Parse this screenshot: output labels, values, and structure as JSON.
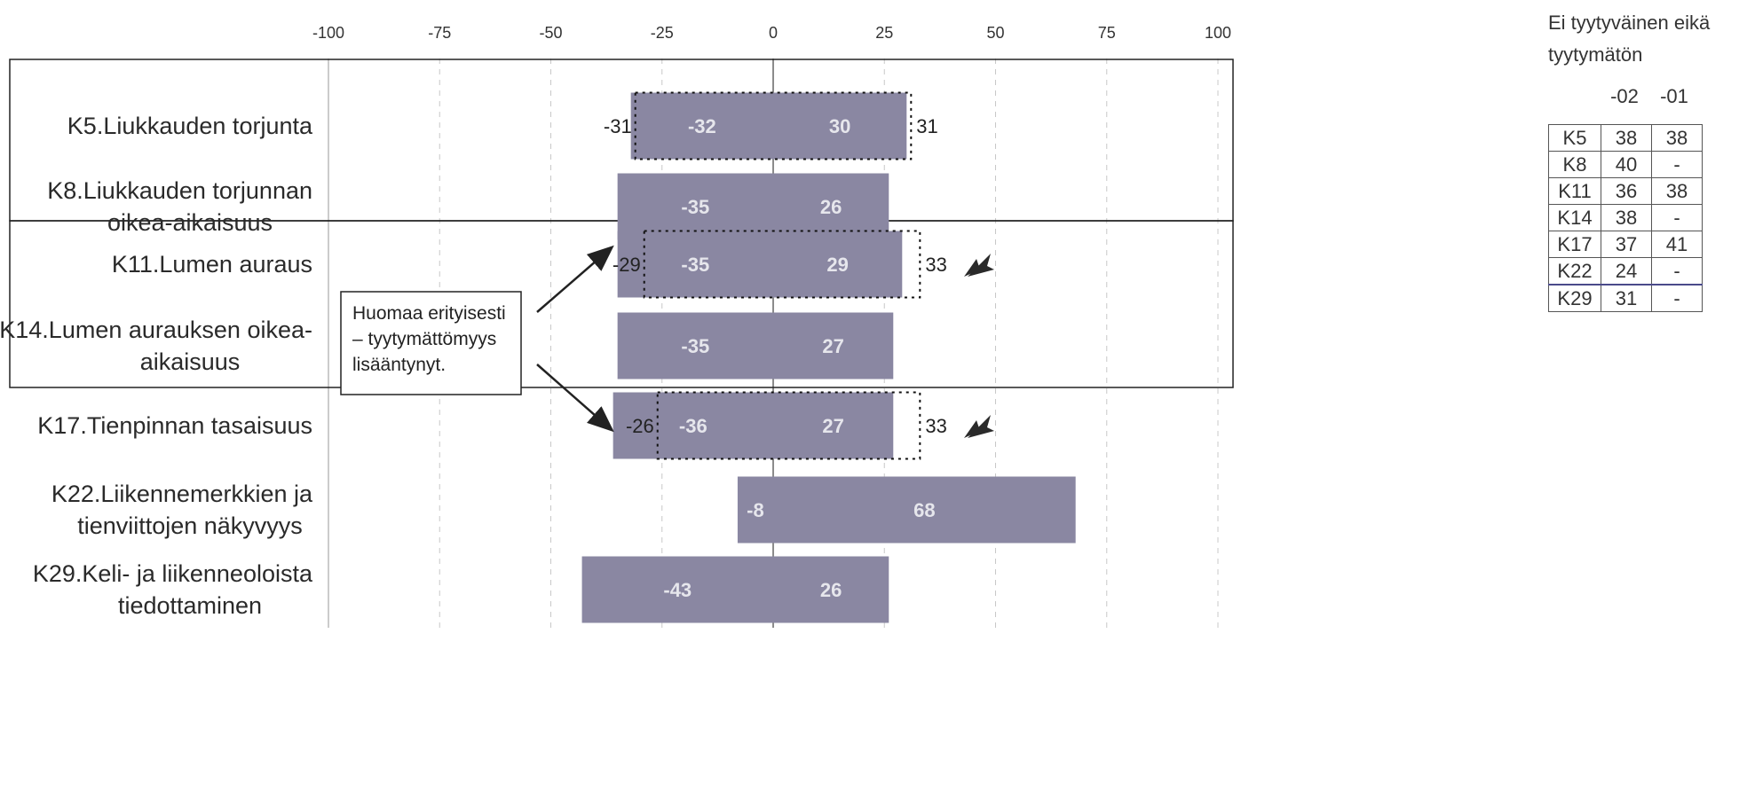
{
  "chart_data": {
    "type": "bar",
    "orientation": "horizontal-diverging",
    "xlim": [
      -100,
      100
    ],
    "ticks": [
      -100,
      -75,
      -50,
      -25,
      0,
      25,
      50,
      75,
      100
    ],
    "legend": "none",
    "grid": "vertical dashed",
    "categories": [
      {
        "id": "K5",
        "label_lines": [
          "K5.Liukkauden torjunta"
        ]
      },
      {
        "id": "K8",
        "label_lines": [
          "K8.Liukkauden torjunnan",
          "oikea-aikaisuus"
        ]
      },
      {
        "id": "K11",
        "label_lines": [
          "K11.Lumen auraus"
        ]
      },
      {
        "id": "K14",
        "label_lines": [
          "K14.Lumen aurauksen oikea-",
          "aikaisuus"
        ]
      },
      {
        "id": "K17",
        "label_lines": [
          "K17.Tienpinnan tasaisuus"
        ]
      },
      {
        "id": "K22",
        "label_lines": [
          "K22.Liikennemerkkien ja",
          "tienviittojen näkyvyys"
        ]
      },
      {
        "id": "K29",
        "label_lines": [
          "K29.Keli- ja liikenneoloista",
          "tiedottaminen"
        ]
      }
    ],
    "series": [
      {
        "values_negative": [
          -32,
          -35,
          -35,
          -35,
          -36,
          -8,
          -43
        ],
        "values_positive": [
          30,
          26,
          29,
          27,
          27,
          68,
          26
        ]
      }
    ],
    "previous": [
      {
        "category": "K5",
        "negative": -31,
        "positive": 31
      },
      {
        "category": "K11",
        "negative": -29,
        "positive": 33
      },
      {
        "category": "K17",
        "negative": -26,
        "positive": 33
      }
    ],
    "trend_arrows": [
      "K11",
      "K17"
    ],
    "note": {
      "lines": [
        "Huomaa erityisesti",
        "– tyytymättömyys",
        "lisääntynyt."
      ],
      "arrow_targets": [
        "K11",
        "K17"
      ]
    },
    "colors": {
      "bar": "#8a87a2",
      "bar_label": "#e6e6ec"
    }
  },
  "side_table": {
    "header_lines": [
      "Ei tyytyväinen eikä",
      "tyytymätön"
    ],
    "columns": [
      "-02",
      "-01"
    ],
    "rows": [
      {
        "k": "K5",
        "values": [
          "38",
          "38"
        ]
      },
      {
        "k": "K8",
        "values": [
          "40",
          "-"
        ]
      },
      {
        "k": "K11",
        "values": [
          "36",
          "38"
        ]
      },
      {
        "k": "K14",
        "values": [
          "38",
          "-"
        ]
      },
      {
        "k": "K17",
        "values": [
          "37",
          "41"
        ]
      },
      {
        "k": "K22",
        "values": [
          "24",
          "-"
        ]
      },
      {
        "k": "K29",
        "values": [
          "31",
          "-"
        ]
      }
    ]
  }
}
